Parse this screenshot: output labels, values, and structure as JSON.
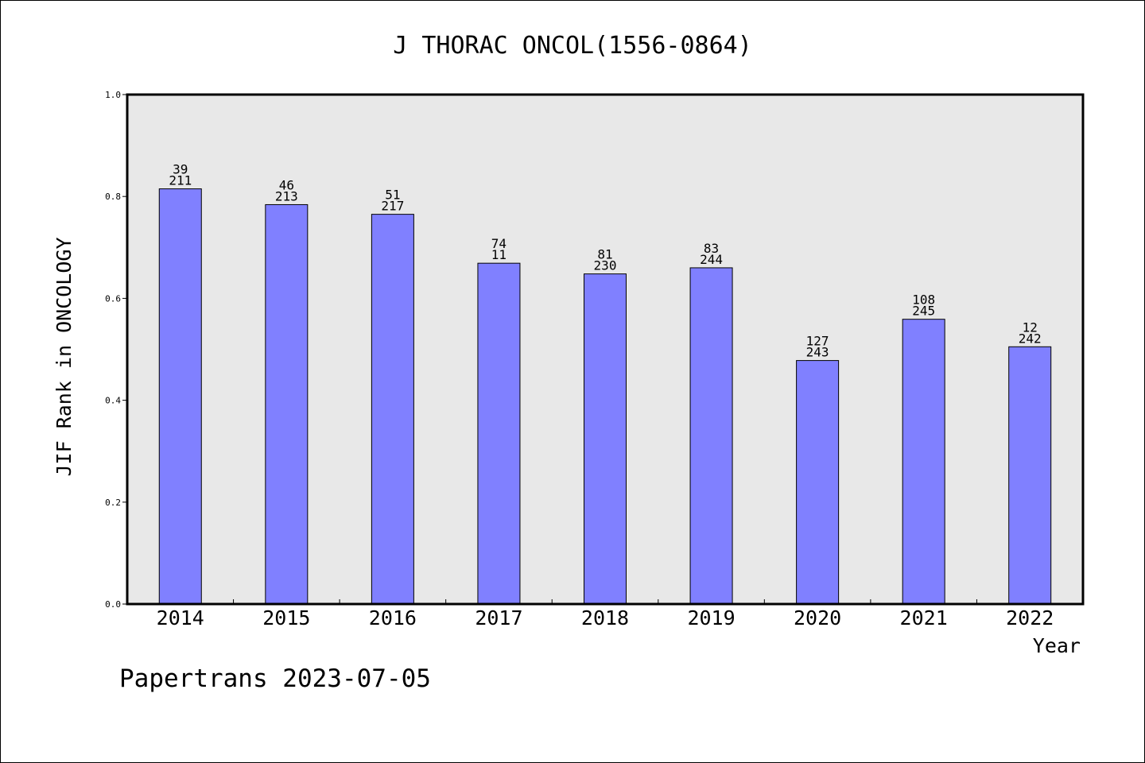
{
  "chart_data": {
    "type": "bar",
    "title": "J THORAC ONCOL(1556-0864)",
    "xlabel": "Year",
    "ylabel": "JIF Rank in ONCOLOGY",
    "categories": [
      "2014",
      "2015",
      "2016",
      "2017",
      "2018",
      "2019",
      "2020",
      "2021",
      "2022"
    ],
    "values": [
      0.815,
      0.784,
      0.765,
      0.669,
      0.648,
      0.66,
      0.478,
      0.559,
      0.505
    ],
    "bar_labels_top": [
      "39",
      "46",
      "51",
      "74",
      "81",
      "83",
      "127",
      "108",
      "12"
    ],
    "bar_labels_bottom": [
      "211",
      "213",
      "217",
      "11",
      "230",
      "244",
      "243",
      "245",
      "242"
    ],
    "ylim": [
      0.0,
      1.0
    ],
    "yticks": [
      "0.0",
      "0.2",
      "0.4",
      "0.6",
      "0.8",
      "1.0"
    ],
    "grid": false,
    "legend": "none",
    "colors": {
      "bar_fill": "#8080ff",
      "plot_background": "#e8e8e8",
      "axes": "#000000",
      "text": "#000000"
    }
  },
  "footer": {
    "text": "Papertrans 2023-07-05"
  }
}
